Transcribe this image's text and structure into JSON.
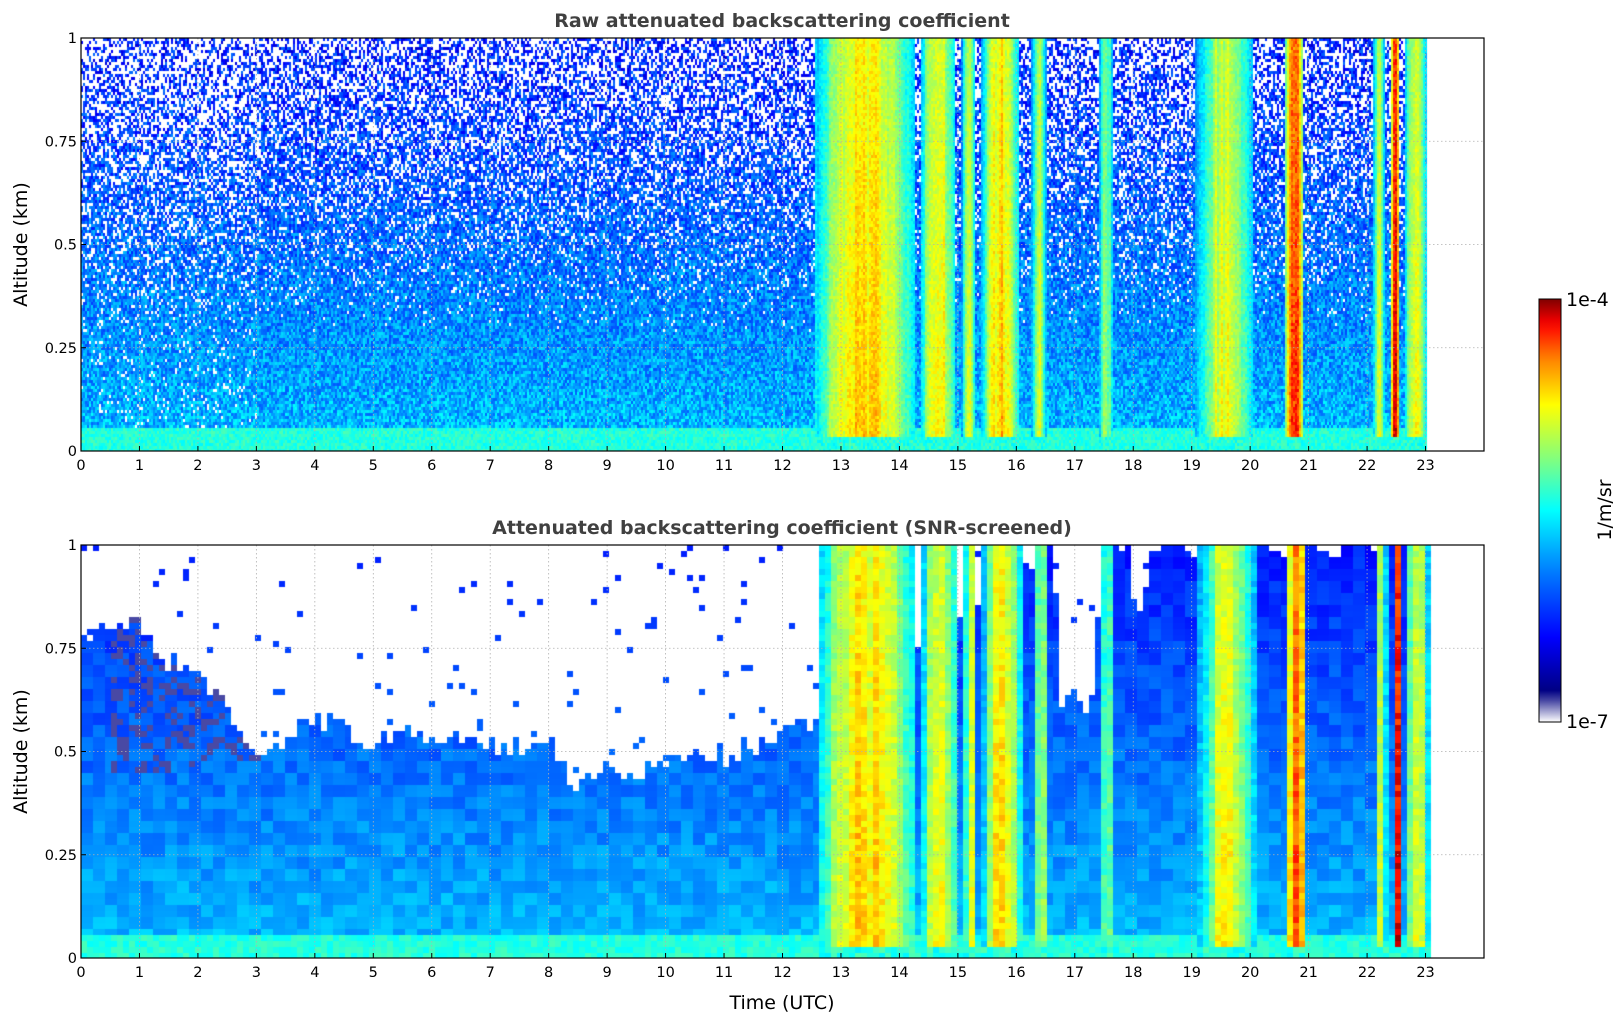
{
  "chart_data": [
    {
      "type": "heatmap",
      "title": "Raw attenuated backscattering coefficient",
      "xlabel": "",
      "ylabel": "Altitude (km)",
      "xlim": [
        0,
        24
      ],
      "ylim": [
        0,
        1
      ],
      "x_ticks": [
        "0",
        "1",
        "2",
        "3",
        "4",
        "5",
        "6",
        "7",
        "8",
        "9",
        "10",
        "11",
        "12",
        "13",
        "14",
        "15",
        "16",
        "17",
        "18",
        "19",
        "20",
        "21",
        "22",
        "23"
      ],
      "y_ticks": [
        "0",
        "0.25",
        "0.5",
        "0.75",
        "1"
      ],
      "grid": true,
      "data_extent_hours": [
        0,
        23
      ],
      "log_level_description": "log10 of 1/m/sr, from -7 to -4",
      "clear_air_log_level": {
        "surface": -5.7,
        "top": -6.3
      },
      "cloud_periods": [
        {
          "start": 12.55,
          "end": 14.25,
          "peak_log_level": -4.6
        },
        {
          "start": 14.35,
          "end": 14.95,
          "peak_log_level": -4.7
        },
        {
          "start": 15.05,
          "end": 15.3,
          "peak_log_level": -4.9
        },
        {
          "start": 15.4,
          "end": 16.05,
          "peak_log_level": -4.6
        },
        {
          "start": 16.25,
          "end": 16.5,
          "peak_log_level": -4.9
        },
        {
          "start": 17.4,
          "end": 17.65,
          "peak_log_level": -5.0
        },
        {
          "start": 19.05,
          "end": 20.05,
          "peak_log_level": -4.8
        },
        {
          "start": 20.6,
          "end": 20.9,
          "peak_log_level": -4.2
        },
        {
          "start": 22.1,
          "end": 22.3,
          "peak_log_level": -4.8
        },
        {
          "start": 22.4,
          "end": 22.55,
          "peak_log_level": -4.1
        },
        {
          "start": 22.65,
          "end": 23.0,
          "peak_log_level": -4.7
        }
      ]
    },
    {
      "type": "heatmap",
      "title": "Attenuated backscattering coefficient (SNR-screened)",
      "xlabel": "Time (UTC)",
      "ylabel": "Altitude (km)",
      "xlim": [
        0,
        24
      ],
      "ylim": [
        0,
        1
      ],
      "x_ticks": [
        "0",
        "1",
        "2",
        "3",
        "4",
        "5",
        "6",
        "7",
        "8",
        "9",
        "10",
        "11",
        "12",
        "13",
        "14",
        "15",
        "16",
        "17",
        "18",
        "19",
        "20",
        "21",
        "22",
        "23"
      ],
      "y_ticks": [
        "0",
        "0.25",
        "0.5",
        "0.75",
        "1"
      ],
      "grid": true,
      "data_extent_hours": [
        0,
        23
      ],
      "screened_top_altitude_km": [
        [
          0.0,
          0.78
        ],
        [
          0.5,
          0.82
        ],
        [
          1.0,
          0.8
        ],
        [
          1.5,
          0.72
        ],
        [
          2.0,
          0.68
        ],
        [
          2.5,
          0.6
        ],
        [
          3.0,
          0.48
        ],
        [
          3.5,
          0.55
        ],
        [
          4.0,
          0.58
        ],
        [
          4.5,
          0.56
        ],
        [
          5.0,
          0.52
        ],
        [
          5.5,
          0.56
        ],
        [
          6.0,
          0.52
        ],
        [
          6.5,
          0.54
        ],
        [
          7.0,
          0.52
        ],
        [
          7.5,
          0.52
        ],
        [
          8.0,
          0.55
        ],
        [
          8.3,
          0.44
        ],
        [
          9.0,
          0.45
        ],
        [
          10.0,
          0.48
        ],
        [
          11.0,
          0.5
        ],
        [
          12.0,
          0.55
        ],
        [
          12.5,
          0.56
        ],
        [
          16.6,
          1.0
        ],
        [
          16.7,
          0.64
        ],
        [
          17.3,
          0.62
        ],
        [
          17.4,
          1.0
        ],
        [
          17.9,
          1.0
        ],
        [
          18.0,
          0.8
        ],
        [
          18.3,
          1.0
        ],
        [
          23.0,
          1.0
        ]
      ]
    }
  ],
  "colorbar": {
    "label": "1/m/sr",
    "max_label": "1e-4",
    "min_label": "1e-7",
    "colormap": "jet",
    "colors": [
      "#ffffff",
      "#00007f",
      "#0000ff",
      "#0080ff",
      "#00ffff",
      "#80ff80",
      "#ffff00",
      "#ff8000",
      "#ff0000",
      "#7f0000"
    ]
  }
}
